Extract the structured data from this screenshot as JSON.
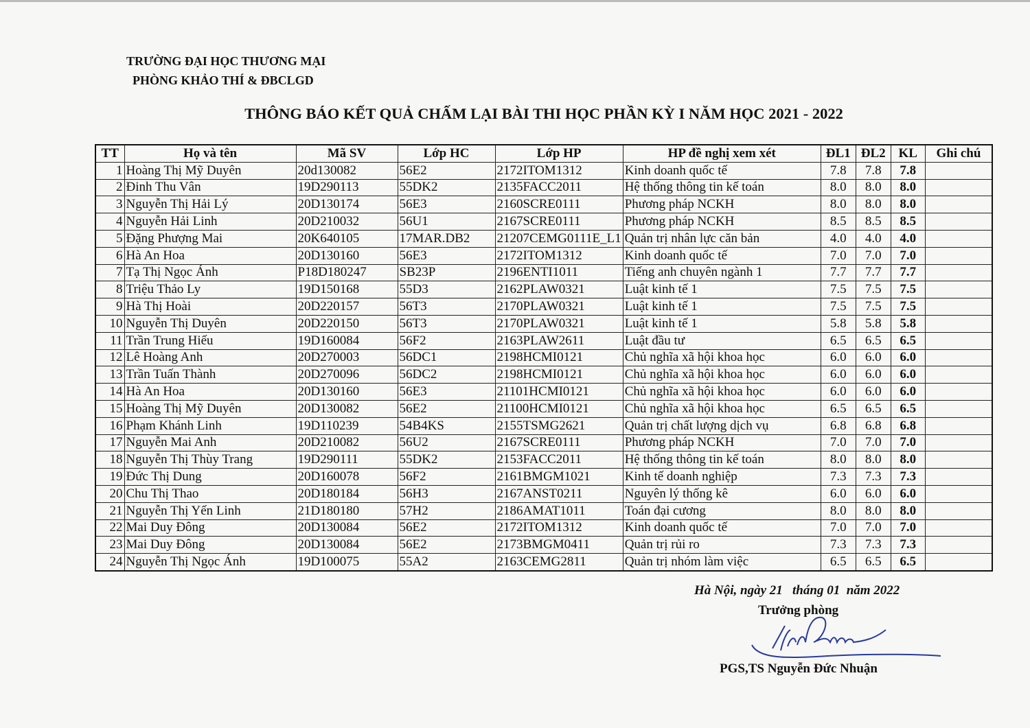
{
  "header": {
    "org_line1": "TRƯỜNG ĐẠI HỌC THƯƠNG MẠI",
    "org_line2": "PHÒNG KHẢO THÍ & ĐBCLGD",
    "title": "THÔNG BÁO KẾT QUẢ CHẤM LẠI BÀI THI HỌC PHẦN KỲ I NĂM HỌC 2021 - 2022"
  },
  "table": {
    "columns": [
      "TT",
      "Họ và tên",
      "Mã SV",
      "Lớp HC",
      "Lớp HP",
      "HP đề nghị xem xét",
      "ĐL1",
      "ĐL2",
      "KL",
      "Ghi chú"
    ],
    "rows": [
      [
        "1",
        "Hoàng Thị Mỹ Duyên",
        "20d130082",
        "56E2",
        "2172ITOM1312",
        "Kinh doanh quốc tế",
        "7.8",
        "7.8",
        "7.8",
        ""
      ],
      [
        "2",
        "Đinh Thu Vân",
        "19D290113",
        "55DK2",
        "2135FACC2011",
        "Hệ thống thông tin kế toán",
        "8.0",
        "8.0",
        "8.0",
        ""
      ],
      [
        "3",
        "Nguyễn Thị Hải Lý",
        "20D130174",
        "56E3",
        "2160SCRE0111",
        "Phương pháp NCKH",
        "8.0",
        "8.0",
        "8.0",
        ""
      ],
      [
        "4",
        "Nguyễn Hải Linh",
        "20D210032",
        "56U1",
        "2167SCRE0111",
        "Phương pháp NCKH",
        "8.5",
        "8.5",
        "8.5",
        ""
      ],
      [
        "5",
        "Đặng Phượng Mai",
        "20K640105",
        "17MAR.DB2",
        "21207CEMG0111E_L1",
        "Quản trị nhân lực căn bản",
        "4.0",
        "4.0",
        "4.0",
        ""
      ],
      [
        "6",
        "Hà An Hoa",
        "20D130160",
        "56E3",
        "2172ITOM1312",
        "Kinh doanh quốc tế",
        "7.0",
        "7.0",
        "7.0",
        ""
      ],
      [
        "7",
        "Tạ Thị Ngọc Ánh",
        "P18D180247",
        "SB23P",
        "2196ENTI1011",
        "Tiếng anh chuyên ngành 1",
        "7.7",
        "7.7",
        "7.7",
        ""
      ],
      [
        "8",
        "Triệu Thảo Ly",
        "19D150168",
        "55D3",
        "2162PLAW0321",
        "Luật kinh tế 1",
        "7.5",
        "7.5",
        "7.5",
        ""
      ],
      [
        "9",
        "Hà Thị Hoài",
        "20D220157",
        "56T3",
        "2170PLAW0321",
        "Luật kinh tế 1",
        "7.5",
        "7.5",
        "7.5",
        ""
      ],
      [
        "10",
        "Nguyễn Thị Duyên",
        "20D220150",
        "56T3",
        "2170PLAW0321",
        "Luật kinh tế 1",
        "5.8",
        "5.8",
        "5.8",
        ""
      ],
      [
        "11",
        "Trần Trung Hiếu",
        "19D160084",
        "56F2",
        "2163PLAW2611",
        "Luật đầu tư",
        "6.5",
        "6.5",
        "6.5",
        ""
      ],
      [
        "12",
        "Lê Hoàng Anh",
        "20D270003",
        "56DC1",
        "2198HCMI0121",
        "Chủ nghĩa xã hội khoa học",
        "6.0",
        "6.0",
        "6.0",
        ""
      ],
      [
        "13",
        "Trần Tuấn Thành",
        "20D270096",
        "56DC2",
        "2198HCMI0121",
        "Chủ nghĩa xã hội khoa học",
        "6.0",
        "6.0",
        "6.0",
        ""
      ],
      [
        "14",
        "Hà An Hoa",
        "20D130160",
        "56E3",
        "21101HCMI0121",
        "Chủ nghĩa xã hội khoa học",
        "6.0",
        "6.0",
        "6.0",
        ""
      ],
      [
        "15",
        "Hoàng Thị Mỹ Duyên",
        "20D130082",
        "56E2",
        "21100HCMI0121",
        "Chủ nghĩa xã hội khoa học",
        "6.5",
        "6.5",
        "6.5",
        ""
      ],
      [
        "16",
        "Phạm Khánh Linh",
        "19D110239",
        "54B4KS",
        "2155TSMG2621",
        "Quản trị chất lượng dịch vụ",
        "6.8",
        "6.8",
        "6.8",
        ""
      ],
      [
        "17",
        "Nguyễn Mai Anh",
        "20D210082",
        "56U2",
        "2167SCRE0111",
        "Phương pháp NCKH",
        "7.0",
        "7.0",
        "7.0",
        ""
      ],
      [
        "18",
        "Nguyễn Thị Thùy Trang",
        "19D290111",
        "55DK2",
        "2153FACC2011",
        "Hệ thống thông tin kế toán",
        "8.0",
        "8.0",
        "8.0",
        ""
      ],
      [
        "19",
        "Đức Thị Dung",
        "20D160078",
        "56F2",
        "2161BMGM1021",
        "Kinh tế doanh nghiệp",
        "7.3",
        "7.3",
        "7.3",
        ""
      ],
      [
        "20",
        "Chu Thị Thao",
        "20D180184",
        "56H3",
        "2167ANST0211",
        "Nguyên lý thống kê",
        "6.0",
        "6.0",
        "6.0",
        ""
      ],
      [
        "21",
        "Nguyễn Thị Yến Linh",
        "21D180180",
        "57H2",
        "2186AMAT1011",
        "Toán đại cương",
        "8.0",
        "8.0",
        "8.0",
        ""
      ],
      [
        "22",
        "Mai Duy Đông",
        "20D130084",
        "56E2",
        "2172ITOM1312",
        "Kinh doanh quốc tế",
        "7.0",
        "7.0",
        "7.0",
        ""
      ],
      [
        "23",
        "Mai Duy Đông",
        "20D130084",
        "56E2",
        "2173BMGM0411",
        "Quản trị rủi ro",
        "7.3",
        "7.3",
        "7.3",
        ""
      ],
      [
        "24",
        "Nguyễn Thị Ngọc Ánh",
        "19D100075",
        "55A2",
        "2163CEMG2811",
        "Quản trị nhóm làm việc",
        "6.5",
        "6.5",
        "6.5",
        ""
      ]
    ]
  },
  "footer": {
    "date": "Hà Nội, ngày 21   tháng 01  năm 2022",
    "role": "Trưởng phòng",
    "signer": "PGS,TS Nguyễn Đức Nhuận",
    "signature_color": "#2a3a9a"
  }
}
